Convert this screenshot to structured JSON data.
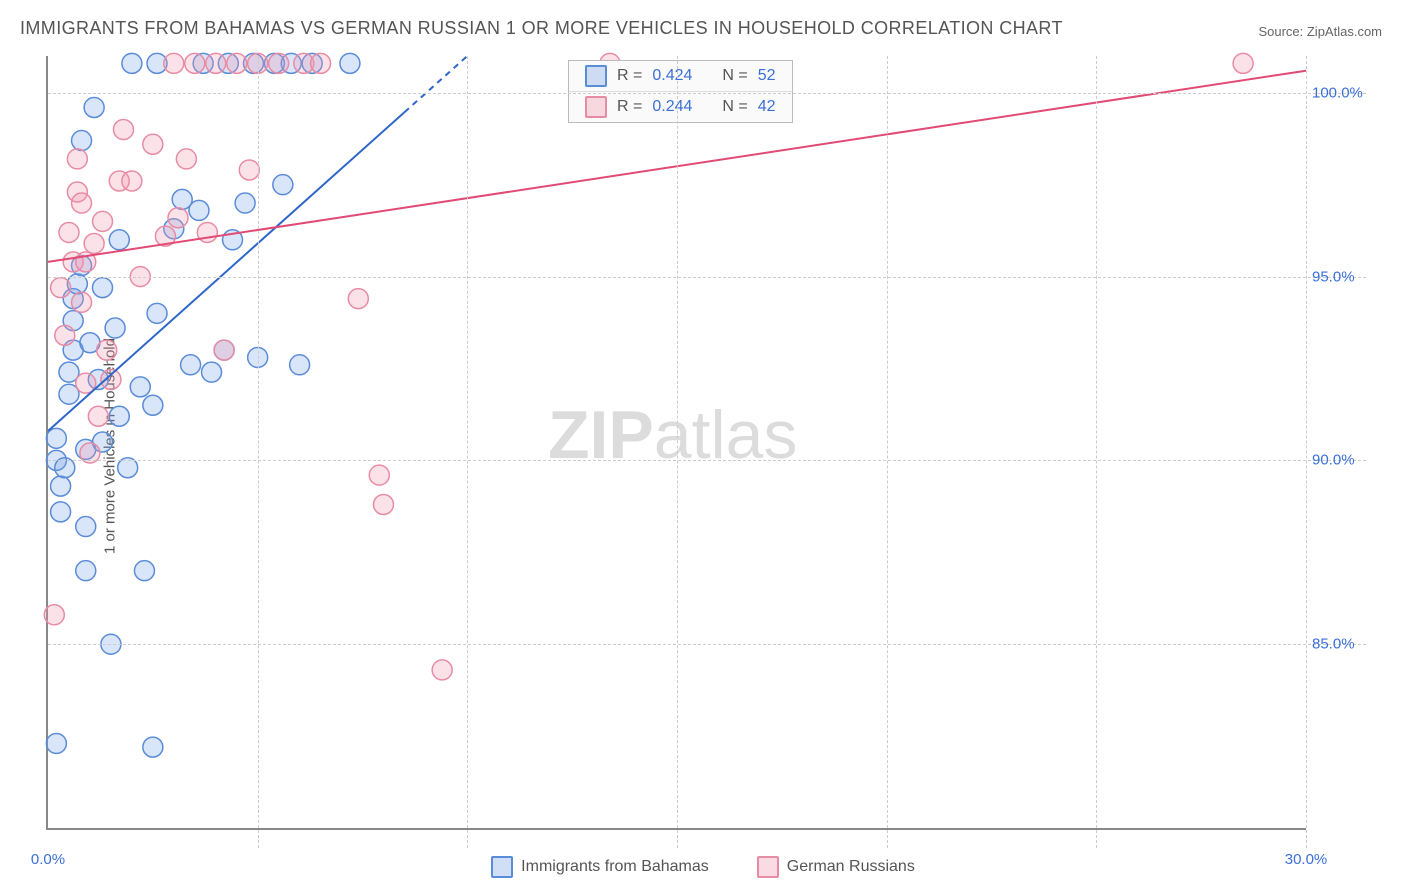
{
  "title": "IMMIGRANTS FROM BAHAMAS VS GERMAN RUSSIAN 1 OR MORE VEHICLES IN HOUSEHOLD CORRELATION CHART",
  "source": "Source: ZipAtlas.com",
  "ylabel": "1 or more Vehicles in Household",
  "watermark": {
    "zip": "ZIP",
    "atlas": "atlas"
  },
  "chart": {
    "type": "scatter",
    "xlim": [
      0,
      30
    ],
    "ylim": [
      80,
      101
    ],
    "x_ticks": [
      0,
      30
    ],
    "x_tick_labels": [
      "0.0%",
      "30.0%"
    ],
    "x_minor_ticks": [
      5,
      10,
      15,
      20,
      25
    ],
    "y_ticks": [
      85,
      90,
      95,
      100
    ],
    "y_tick_labels": [
      "85.0%",
      "90.0%",
      "95.0%",
      "100.0%"
    ],
    "background_color": "#ffffff",
    "grid_color": "#cccccc",
    "axis_color": "#888888",
    "marker_radius": 10,
    "marker_radius_large": 24,
    "marker_stroke_width": 1.5,
    "series": [
      {
        "name": "Immigrants from Bahamas",
        "color_fill": "rgba(120,160,230,0.28)",
        "color_stroke": "#5a8cd8",
        "correlation_R": "0.424",
        "N": "52",
        "trend": {
          "x1": 0,
          "y1": 90.8,
          "x2": 10,
          "y2": 101,
          "dash_from_x": 8.5,
          "stroke": "#2f66c9",
          "width": 2
        },
        "points": [
          [
            0.2,
            90.6
          ],
          [
            0.2,
            90.0
          ],
          [
            0.3,
            89.3
          ],
          [
            0.3,
            88.6
          ],
          [
            0.4,
            89.8
          ],
          [
            0.5,
            91.8
          ],
          [
            0.5,
            92.4
          ],
          [
            0.6,
            93.0
          ],
          [
            0.6,
            93.8
          ],
          [
            0.6,
            94.4
          ],
          [
            0.7,
            94.8
          ],
          [
            0.8,
            95.3
          ],
          [
            0.8,
            98.7
          ],
          [
            0.9,
            90.3
          ],
          [
            0.9,
            88.2
          ],
          [
            0.9,
            87.0
          ],
          [
            1.0,
            93.2
          ],
          [
            1.1,
            99.6
          ],
          [
            1.2,
            92.2
          ],
          [
            1.3,
            94.7
          ],
          [
            1.3,
            90.5
          ],
          [
            1.5,
            85.0
          ],
          [
            1.6,
            93.6
          ],
          [
            1.7,
            91.2
          ],
          [
            1.7,
            96.0
          ],
          [
            1.9,
            89.8
          ],
          [
            2.0,
            100.8
          ],
          [
            2.2,
            92.0
          ],
          [
            2.3,
            87.0
          ],
          [
            2.5,
            91.5
          ],
          [
            2.6,
            94.0
          ],
          [
            2.6,
            100.8
          ],
          [
            3.0,
            96.3
          ],
          [
            3.2,
            97.1
          ],
          [
            3.4,
            92.6
          ],
          [
            3.6,
            96.8
          ],
          [
            3.7,
            100.8
          ],
          [
            3.9,
            92.4
          ],
          [
            4.2,
            93.0
          ],
          [
            4.3,
            100.8
          ],
          [
            4.4,
            96.0
          ],
          [
            4.7,
            97.0
          ],
          [
            4.9,
            100.8
          ],
          [
            5.0,
            92.8
          ],
          [
            5.4,
            100.8
          ],
          [
            5.6,
            97.5
          ],
          [
            5.8,
            100.8
          ],
          [
            6.0,
            92.6
          ],
          [
            6.3,
            100.8
          ],
          [
            7.2,
            100.8
          ],
          [
            0.2,
            82.3
          ],
          [
            2.5,
            82.2
          ]
        ]
      },
      {
        "name": "German Russians",
        "color_fill": "rgba(240,150,175,0.28)",
        "color_stroke": "#e88ca5",
        "correlation_R": "0.244",
        "N": "42",
        "trend": {
          "x1": 0,
          "y1": 95.4,
          "x2": 30,
          "y2": 100.6,
          "stroke": "#e14a74",
          "width": 2
        },
        "points": [
          [
            0.3,
            94.7
          ],
          [
            0.4,
            93.4
          ],
          [
            0.5,
            96.2
          ],
          [
            0.6,
            95.4
          ],
          [
            0.7,
            97.3
          ],
          [
            0.7,
            98.2
          ],
          [
            0.8,
            97.0
          ],
          [
            0.8,
            94.3
          ],
          [
            0.9,
            95.4
          ],
          [
            0.9,
            92.1
          ],
          [
            1.0,
            90.2
          ],
          [
            1.1,
            95.9
          ],
          [
            1.2,
            91.2
          ],
          [
            1.3,
            96.5
          ],
          [
            1.4,
            93.0
          ],
          [
            1.5,
            92.2
          ],
          [
            1.7,
            97.6
          ],
          [
            1.8,
            99.0
          ],
          [
            2.0,
            97.6
          ],
          [
            2.2,
            95.0
          ],
          [
            2.5,
            98.6
          ],
          [
            2.8,
            96.1
          ],
          [
            3.0,
            100.8
          ],
          [
            3.1,
            96.6
          ],
          [
            3.3,
            98.2
          ],
          [
            3.5,
            100.8
          ],
          [
            3.8,
            96.2
          ],
          [
            4.0,
            100.8
          ],
          [
            4.2,
            93.0
          ],
          [
            4.5,
            100.8
          ],
          [
            4.8,
            97.9
          ],
          [
            5.0,
            100.8
          ],
          [
            5.5,
            100.8
          ],
          [
            6.1,
            100.8
          ],
          [
            6.5,
            100.8
          ],
          [
            7.4,
            94.4
          ],
          [
            7.9,
            89.6
          ],
          [
            8.0,
            88.8
          ],
          [
            9.4,
            84.3
          ],
          [
            13.4,
            100.8
          ],
          [
            28.5,
            100.8
          ],
          [
            0.15,
            85.8
          ]
        ],
        "large_points": [
          [
            0.15,
            85.8
          ],
          [
            0.2,
            82.3
          ]
        ]
      }
    ]
  },
  "legend_top": {
    "r_label": "R =",
    "n_label": "N ="
  },
  "legend_bottom": [
    {
      "label": "Immigrants from Bahamas",
      "fill": "rgba(120,160,230,0.35)",
      "stroke": "#5a8cd8"
    },
    {
      "label": "German Russians",
      "fill": "rgba(240,150,175,0.35)",
      "stroke": "#e88ca5"
    }
  ],
  "colors": {
    "title": "#555555",
    "tick_label": "#3b6fd8",
    "source": "#666666"
  }
}
